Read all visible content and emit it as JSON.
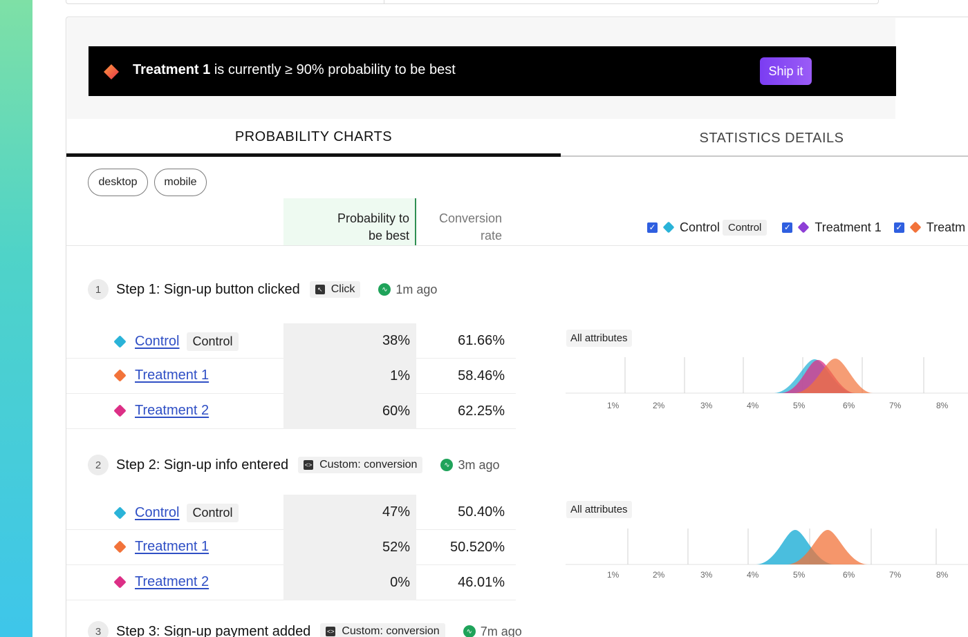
{
  "banner": {
    "winner": "Treatment 1",
    "message": "is currently ≥ 90% probability to be best",
    "ship_label": "Ship it"
  },
  "tabs": [
    {
      "label": "PROBABILITY CHARTS",
      "active": true
    },
    {
      "label": "STATISTICS DETAILS",
      "active": false
    }
  ],
  "filters": [
    "desktop",
    "mobile"
  ],
  "columns": {
    "prob_line1": "Probability to",
    "prob_line2": "be best",
    "conv_line1": "Conversion",
    "conv_line2": "rate"
  },
  "legend": [
    {
      "label": "Control",
      "tag": "Control",
      "color": "#2ab3d8",
      "checked": true
    },
    {
      "label": "Treatment 1",
      "tag": "",
      "color": "#8e3fd6",
      "checked": true
    },
    {
      "label": "Treatm",
      "tag": "",
      "color": "#f2733a",
      "checked": true
    }
  ],
  "colors": {
    "control": "#2ab3d8",
    "treatment1": "#f2733a",
    "treatment2": "#dc2f86",
    "accent": "#8b4cf3"
  },
  "steps": [
    {
      "num": "1",
      "title": "Step 1:  Sign-up button clicked",
      "event": "Click",
      "time": "1m ago",
      "attr_label": "All attributes",
      "rows": [
        {
          "name": "Control",
          "tag": "Control",
          "prob": "38%",
          "conv": "61.66%"
        },
        {
          "name": "Treatment 1",
          "tag": "",
          "prob": "1%",
          "conv": "58.46%"
        },
        {
          "name": "Treatment 2",
          "tag": "",
          "prob": "60%",
          "conv": "62.25%"
        }
      ],
      "axis_ticks": [
        "1%",
        "2%",
        "3%",
        "4%",
        "5%",
        "6%",
        "7%",
        "8%"
      ]
    },
    {
      "num": "2",
      "title": "Step 2:  Sign-up info entered",
      "event": "Custom: conversion",
      "time": "3m ago",
      "attr_label": "All attributes",
      "rows": [
        {
          "name": "Control",
          "tag": "Control",
          "prob": "47%",
          "conv": "50.40%"
        },
        {
          "name": "Treatment 1",
          "tag": "",
          "prob": "52%",
          "conv": "50.520%"
        },
        {
          "name": "Treatment 2",
          "tag": "",
          "prob": "0%",
          "conv": "46.01%"
        }
      ],
      "axis_ticks": [
        "1%",
        "2%",
        "3%",
        "4%",
        "5%",
        "6%",
        "7%",
        "8%"
      ]
    },
    {
      "num": "3",
      "title": "Step 3:  Sign-up payment added",
      "event": "Custom: conversion",
      "time": "7m ago"
    }
  ]
}
